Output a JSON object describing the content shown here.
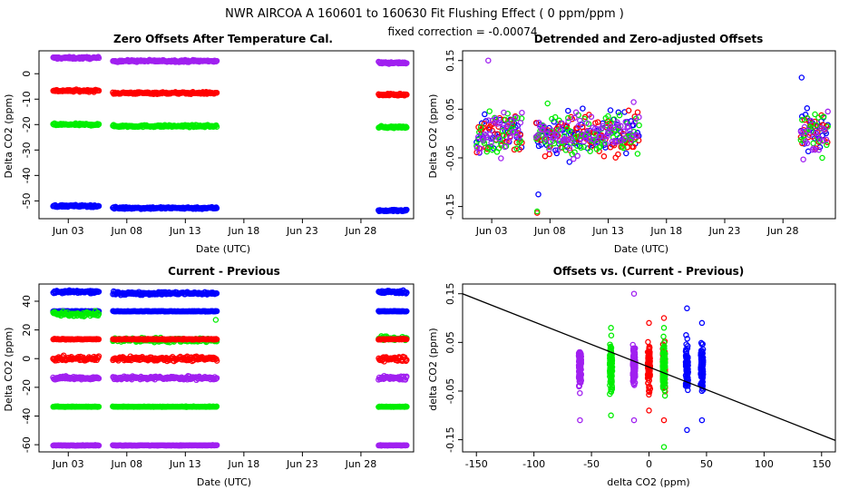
{
  "header": {
    "line1": "NWR   AIRCOA A   160601 to 160630   Fit Flushing Effect ( 0 ppm/ppm )",
    "line2": "fixed correction = -0.00074"
  },
  "colors": {
    "blue": "#0000ff",
    "red": "#ff0000",
    "green": "#00ee00",
    "purple": "#a020f0",
    "black": "#000000"
  },
  "chart_data": [
    {
      "type": "scatter",
      "title": "Zero Offsets After Temperature Cal.",
      "xlabel": "Date (UTC)",
      "ylabel": "Delta CO2 (ppm)",
      "xlim": [
        0.5,
        32.5
      ],
      "ylim": [
        -57,
        9
      ],
      "xticks": [
        3,
        8,
        13,
        18,
        23,
        28
      ],
      "xticklabels": [
        "Jun 03",
        "Jun 08",
        "Jun 13",
        "Jun 18",
        "Jun 23",
        "Jun 28"
      ],
      "yticks": [
        -50,
        -40,
        -30,
        -20,
        -10,
        0
      ],
      "yticklabels": [
        "-50",
        "-40",
        "-30",
        "-20",
        "-10",
        "0"
      ],
      "segments": [
        [
          1.7,
          5.6
        ],
        [
          6.8,
          15.7
        ],
        [
          29.5,
          31.9
        ]
      ],
      "series": [
        {
          "name": "purple",
          "color": "purple",
          "level": [
            6.2,
            5.0,
            4.3
          ],
          "noise": 0.4
        },
        {
          "name": "red",
          "color": "red",
          "level": [
            -6.7,
            -7.6,
            -8.3
          ],
          "noise": 0.4
        },
        {
          "name": "green",
          "color": "green",
          "level": [
            -20.0,
            -20.6,
            -21.0
          ],
          "noise": 0.4
        },
        {
          "name": "blue",
          "color": "blue",
          "level": [
            -52.0,
            -52.8,
            -53.8
          ],
          "noise": 0.4
        }
      ]
    },
    {
      "type": "scatter",
      "title": "Detrended and Zero-adjusted Offsets",
      "xlabel": "Date (UTC)",
      "ylabel": "Delta CO2 (ppm)",
      "xlim": [
        0.5,
        32.5
      ],
      "ylim": [
        -0.175,
        0.17
      ],
      "xticks": [
        3,
        8,
        13,
        18,
        23,
        28
      ],
      "xticklabels": [
        "Jun 03",
        "Jun 08",
        "Jun 13",
        "Jun 18",
        "Jun 23",
        "Jun 28"
      ],
      "yticks": [
        -0.15,
        -0.05,
        0.05,
        0.15
      ],
      "yticklabels": [
        "-0.15",
        "-0.05",
        "0.05",
        "0.15"
      ],
      "segments": [
        [
          1.7,
          5.6
        ],
        [
          6.8,
          15.7
        ],
        [
          29.5,
          31.9
        ]
      ],
      "spread": [
        -0.1,
        0.1
      ],
      "series": [
        {
          "name": "blue",
          "color": "blue"
        },
        {
          "name": "red",
          "color": "red"
        },
        {
          "name": "green",
          "color": "green"
        },
        {
          "name": "purple",
          "color": "purple"
        }
      ]
    },
    {
      "type": "scatter",
      "title": "Current - Previous",
      "xlabel": "Date (UTC)",
      "ylabel": "Delta CO2 (ppm)",
      "xlim": [
        0.5,
        32.5
      ],
      "ylim": [
        -65,
        52
      ],
      "xticks": [
        3,
        8,
        13,
        18,
        23,
        28
      ],
      "xticklabels": [
        "Jun 03",
        "Jun 08",
        "Jun 13",
        "Jun 18",
        "Jun 23",
        "Jun 28"
      ],
      "yticks": [
        -60,
        -40,
        -20,
        0,
        20,
        40
      ],
      "yticklabels": [
        "-60",
        "-40",
        "-20",
        "0",
        "20",
        "40"
      ],
      "segments": [
        [
          1.7,
          5.6
        ],
        [
          6.8,
          15.7
        ],
        [
          29.5,
          31.9
        ]
      ],
      "series": [
        {
          "name": "blue high",
          "color": "blue",
          "level": [
            46.5,
            45.5,
            46.5
          ],
          "noise": 1.0
        },
        {
          "name": "blue mid",
          "color": "blue",
          "level": [
            33,
            33,
            33
          ],
          "noise": 0.2
        },
        {
          "name": "green mid",
          "color": "green",
          "level": [
            31,
            13,
            14
          ],
          "noise": 1.5
        },
        {
          "name": "red mid",
          "color": "red",
          "level": [
            13.5,
            13.5,
            13.5
          ],
          "noise": 0.3
        },
        {
          "name": "red low",
          "color": "red",
          "level": [
            0,
            0,
            0
          ],
          "noise": 1.5
        },
        {
          "name": "purple mid",
          "color": "purple",
          "level": [
            -13.5,
            -13.5,
            -13.5
          ],
          "noise": 1.2
        },
        {
          "name": "green low",
          "color": "green",
          "level": [
            -33.5,
            -33.5,
            -33.5
          ],
          "noise": 0.2
        },
        {
          "name": "purple low",
          "color": "purple",
          "level": [
            -60.5,
            -60.5,
            -60.5
          ],
          "noise": 0.2
        }
      ]
    },
    {
      "type": "scatter",
      "title": "Offsets vs. (Current - Previous)",
      "xlabel": "delta CO2 (ppm)",
      "ylabel": "delta CO2 (ppm)",
      "xlim": [
        -162,
        162
      ],
      "ylim": [
        -0.175,
        0.17
      ],
      "xticks": [
        -150,
        -100,
        -50,
        0,
        50,
        100,
        150
      ],
      "xticklabels": [
        "-150",
        "-100",
        "-50",
        "0",
        "50",
        "100",
        "150"
      ],
      "yticks": [
        -0.15,
        -0.05,
        0.05,
        0.15
      ],
      "yticklabels": [
        "-0.15",
        "-0.05",
        "0.05",
        "0.15"
      ],
      "columns": [
        {
          "x": -60,
          "color": "purple",
          "range": [
            -0.11,
            0.03
          ]
        },
        {
          "x": -33,
          "color": "green",
          "range": [
            -0.1,
            0.08
          ]
        },
        {
          "x": -13,
          "color": "purple",
          "range": [
            -0.11,
            0.15
          ]
        },
        {
          "x": 0,
          "color": "red",
          "range": [
            -0.09,
            0.09
          ]
        },
        {
          "x": 13,
          "color": "red",
          "range": [
            -0.11,
            0.1
          ]
        },
        {
          "x": 13,
          "color": "green",
          "range": [
            -0.165,
            0.08
          ]
        },
        {
          "x": 33,
          "color": "blue",
          "range": [
            -0.13,
            0.12
          ]
        },
        {
          "x": 46,
          "color": "blue",
          "range": [
            -0.11,
            0.09
          ]
        }
      ],
      "fit_line": {
        "intercept": -0.00074,
        "slope": -0.00093
      }
    }
  ]
}
